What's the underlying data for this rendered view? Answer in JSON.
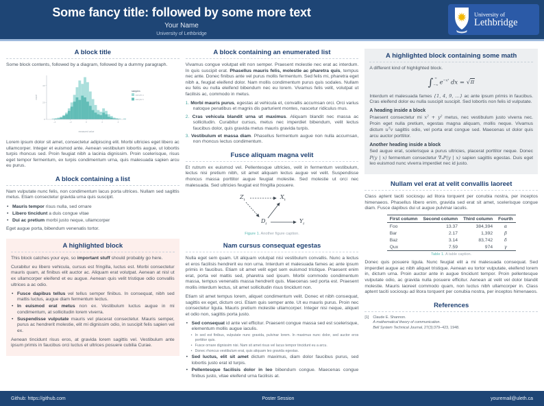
{
  "header": {
    "title": "Some fancy title: followed by some more text",
    "author": "Your Name",
    "affiliation": "University of Lethbridge",
    "logo": {
      "line1": "University of",
      "line2": "Lethbridge"
    }
  },
  "footer": {
    "github": "Github: https://github.com",
    "session": "Poster Session",
    "email": "youremail@uleth.ca"
  },
  "colors": {
    "header_bg": "#1e4575",
    "accent_line": "#9db9dc",
    "logo_bg": "#2b5aa7",
    "block_title": "#1f4172",
    "body_text": "#4a5560",
    "highlight_pink_bg": "#fdefec",
    "highlight_gray_bg": "#edeff1",
    "caption_accent": "#56b7b1"
  },
  "col1": {
    "block1": {
      "title": "A block title",
      "intro": "Some block contents, followed by a diagram, followed by a dummy paragraph.",
      "outro": "Lorem ipsum dolor sit amet, consectetur adipiscing elit. Morbi ultricies eget libero ac ullamcorper. Integer et euismod ante. Aenean vestibulum lobortis augue, ut lobortis turpis rhoncus sed. Proin feugiat nibh a lacinia dignissim. Proin scelerisque, risus eget tempor fermentum, ex turpis condimentum urna, quis malesuada sapien arcu eu purus."
    },
    "block2": {
      "title": "A block containing a list",
      "intro": "Nam vulputate nunc felis, non condimentum lacus porta ultrices. Nullam sed sagittis metus. Etiam consectetur gravida urna quis suscipit.",
      "items": [
        {
          "lead": "Mauris tempor",
          "rest": " risus nulla, sed ornare"
        },
        {
          "lead": "Libero tincidunt",
          "rest": " a duis congue vitae"
        },
        {
          "lead": "Dui ac pretium",
          "rest": " morbi justo neque, ullamcorper"
        }
      ],
      "outro": "Eget augue porta, bibendum venenatis tortor."
    },
    "block3": {
      "title": "A highlighted block",
      "p1_a": "This block catches your eye, so ",
      "p1_b": "important stuff",
      "p1_c": " should probably go here.",
      "p2": "Curabitur eu libero vehicula, cursus est fringilla, luctus est. Morbi consectetur mauris quam, at finibus elit auctor ac. Aliquam erat volutpat. Aenean at nisl ut ex ullamcorper eleifend et eu augue. Aenean quis velit tristique odio convallis ultrices a ac odio.",
      "items": [
        {
          "lead": "Fusce dapibus tellus",
          "rest": " vel tellus semper finibus. In consequat, nibh sed mattis luctus, augue diam fermentum lectus."
        },
        {
          "lead": "In euismod erat metus",
          "rest": " non ex. Vestibulum luctus augue in mi condimentum, at sollicitudin lorem viverra."
        },
        {
          "lead": "Suspendisse vulputate",
          "rest": " mauris vel placerat consectetur. Mauris semper, purus ac hendrerit molestie, elit mi dignissim odio, in suscipit felis sapien vel ex."
        }
      ],
      "outro": "Aenean tincidunt risus eros, at gravida lorem sagittis vel. Vestibulum ante ipsum primis in faucibus orci luctus et ultrices posuere cubilia Curae."
    }
  },
  "col2": {
    "block1": {
      "title": "A block containing an enumerated list",
      "p_a": "Vivamus congue volutpat elit non semper. Praesent molestie nec erat ac interdum. In quis suscipit erat. ",
      "p_b": "Phasellus mauris felis, molestie ac pharetra quis",
      "p_c": ", tempus nec ante. Donec finibus ante vel purus mollis fermentum. Sed felis mi, pharetra eget nibh a, feugiat eleifend dolor. Nam mollis condimentum purus quis sodales. Nullam eu felis eu nulla eleifend bibendum nec eu lorem. Vivamus felis velit, volutpat ut facilisis ac, commodo in metus.",
      "items": [
        {
          "num": "1.",
          "lead": "Morbi mauris purus",
          "rest": ", egestas at vehicula et, convallis accumsan orci. Orci varius natoque penatibus et magnis dis parturient montes, nascetur ridiculus mus."
        },
        {
          "num": "2.",
          "lead": "Cras vehicula blandit urna ut maximus",
          "rest": ". Aliquam blandit nec massa ac sollicitudin. Curabitur cursus, metus nec imperdiet bibendum, velit lectus faucibus dolor, quis gravida metus mauris gravida turpis."
        },
        {
          "num": "3.",
          "lead": "Vestibulum et massa diam",
          "rest": ". Phasellus fermentum augue non nulla accumsan, non rhoncus lectus condimentum."
        }
      ]
    },
    "block2": {
      "title": "Fusce aliquam magna velit",
      "p": "Et rutrum ex euismod vel. Pellentesque ultricies, velit in fermentum vestibulum, lectus nisi pretium nibh, sit amet aliquam lectus augue vel velit. Suspendisse rhoncus massa porttitor augue feugiat molestie. Sed molestie ut orci nec malesuada. Sed ultricies feugiat est fringilla posuere.",
      "caption": {
        "label": "Figure 1.",
        "text": "Another figure caption."
      }
    },
    "block3": {
      "title": "Nam cursus consequat egestas",
      "p1": "Nulla eget sem quam. Ut aliquam volutpat nisi vestibulum convallis. Nunc a lectus et eros facilisis hendrerit eu non urna. Interdum et malesuada fames ac ante ipsum primis in faucibus. Etiam sit amet velit eget sem euismod tristique. Praesent enim erat, porta vel mattis sed, pharetra sed ipsum. Morbi commodo condimentum massa, tempus venenatis massa hendrerit quis. Maecenas sed porta est. Praesent mollis interdum lectus, sit amet sollicitudin risus tincidunt non.",
      "p2": "Etiam sit amet tempus lorem, aliquet condimentum velit. Donec et nibh consequat, sagittis ex eget, dictum orci. Etiam quis semper ante. Ut eu mauris purus. Proin nec consectetur ligula. Mauris pretium molestie ullamcorper. Integer nisi neque, aliquet et odio non, sagittis porta justo.",
      "item1": {
        "lead": "Sed consequat",
        "rest": " id ante vel efficitur. Praesent congue massa sed est scelerisque, elementum mollis augue iaculis."
      },
      "subitems": [
        "In sed est finibus, vulputate nunc gravida, pulvinar lorem. In maximus nunc dolor, sed auctor eros porttitor quis.",
        "Fusce ornare dignissim nisi. Nam sit amet risus vel lacus tempor tincidunt eu a arcu.",
        "Donec rhoncus vestibulum erat, quis aliquam leo gravida egestas."
      ],
      "item2": {
        "lead": "Sed luctus, elit sit amet",
        "rest": " dictum maximus, diam dolor faucibus purus, sed lobortis justo erat id turpis."
      },
      "item3": {
        "lead": "Pellentesque facilisis dolor in leo",
        "rest": " bibendum congue. Maecenas congue finibus justo, vitae eleifend urna facilisis at."
      }
    }
  },
  "col3": {
    "block1": {
      "title": "A highlighted block containing some math",
      "p1": "A different kind of highlighted block.",
      "math": {
        "int": "∫",
        "upper": "∞",
        "lower": "−∞",
        "body": "e",
        "exp": "−x²",
        "mid": " dx = ",
        "sqrt": "√",
        "radicand": "π"
      },
      "p2_a": "Interdum et malesuada fames ",
      "p2_m": "{1, 4, 9, …}",
      "p2_b": " ac ante ipsum primis in faucibus. Cras eleifend dolor eu nulla suscipit suscipit. Sed lobortis non felis id vulputate.",
      "h1": "A heading inside a block",
      "p3_a": "Praesent consectetur mi ",
      "p3_m1": "x² + y²",
      "p3_b": " metus, nec vestibulum justo viverra nec. Proin eget nulla pretium, egestas magna aliquam, mollis neque. Vivamus dictum ",
      "p3_m2": "uᵀv",
      "p3_c": " sagittis odio, vel porta erat congue sed. Maecenas ut dolor quis arcu auctor porttitor.",
      "h2": "Another heading inside a block",
      "p4_a": "Sed augue erat, scelerisque a purus ultricies, placerat porttitor neque. Donec ",
      "p4_m1": "P(y | x)",
      "p4_b": " fermentum consectetur ",
      "p4_m2": "∇ₓP(y | x)",
      "p4_c": " sapien sagittis egestas. Duis eget leo euismod nunc viverra imperdiet nec id justo."
    },
    "block2": {
      "title": "Nullam vel erat at velit convallis laoreet",
      "p1": "Class aptent taciti sociosqu ad litora torquent per conubia nostra, per inceptos himenaeos. Phasellus libero enim, gravida sed erat sit amet, scelerisque congue diam. Fusce dapibus dui ut augue pulvinar iaculis.",
      "table": {
        "headers": [
          "First column",
          "Second column",
          "Third column",
          "Fourth"
        ],
        "rows": [
          [
            "Foo",
            "13.37",
            "384,394",
            "α"
          ],
          [
            "Bar",
            "2.17",
            "1,392",
            "β"
          ],
          [
            "Baz",
            "3.14",
            "83,742",
            "δ"
          ],
          [
            "Qux",
            "7.59",
            "974",
            "γ"
          ]
        ]
      },
      "caption": {
        "label": "Table 1.",
        "text": "A table caption."
      },
      "p2": "Donec quis posuere ligula. Nunc feugiat elit a mi malesuada consequat. Sed imperdiet augue ac nibh aliquet tristique. Aenean eu tortor vulputate, eleifend lorem in, dictum urna. Proin auctor ante in augue tincidunt tempor. Proin pellentesque vulputate odio, ac gravida nulla posuere efficitur. Aenean at velit vel dolor blandit molestie. Mauris laoreet commodo quam, non luctus nibh ullamcorper in. Class aptent taciti sociosqu ad litora torquent per conubia nostra, per inceptos himenaeos."
    },
    "block3": {
      "title": "References",
      "items": [
        {
          "index": "[1]",
          "author": "Claude E. Shannon.",
          "title": "A mathematical theory of communication.",
          "journal": "Bell System Technical Journal",
          "tail": ", 27(3):379–423, 1948."
        }
      ]
    }
  },
  "figure_diagram": {
    "nodes": [
      {
        "label": "Z",
        "sub": "t"
      },
      {
        "label": "X",
        "sub": "t"
      },
      {
        "label": "D",
        "sub": "t"
      },
      {
        "label": "Y",
        "sub": "t"
      }
    ]
  },
  "chart_data": {
    "type": "bar",
    "subtype": "histogram",
    "title": "",
    "xlabel": "measured value",
    "ylabel": "count",
    "xticks": [
      "−4",
      "−2",
      "0",
      "2",
      "4"
    ],
    "yticks": [
      "0",
      "20",
      "40"
    ],
    "ylim": [
      0,
      52
    ],
    "legend_title": "samples",
    "legend_position": "right",
    "series": [
      {
        "name": "sample a",
        "color": "#8ad3ce",
        "values": [
          0,
          0,
          1,
          1,
          2,
          3,
          5,
          8,
          13,
          20,
          29,
          38,
          46,
          42,
          50,
          44,
          33,
          24,
          17,
          11,
          9,
          13,
          10,
          6,
          4,
          2,
          1,
          1,
          0,
          1
        ]
      },
      {
        "name": "sample b",
        "color": "#45b0a9",
        "values": [
          0,
          0,
          0,
          1,
          1,
          2,
          4,
          6,
          10,
          15,
          21,
          26,
          23,
          28,
          26,
          21,
          16,
          11,
          8,
          6,
          5,
          8,
          6,
          3,
          2,
          1,
          1,
          0,
          0,
          0
        ]
      }
    ]
  }
}
